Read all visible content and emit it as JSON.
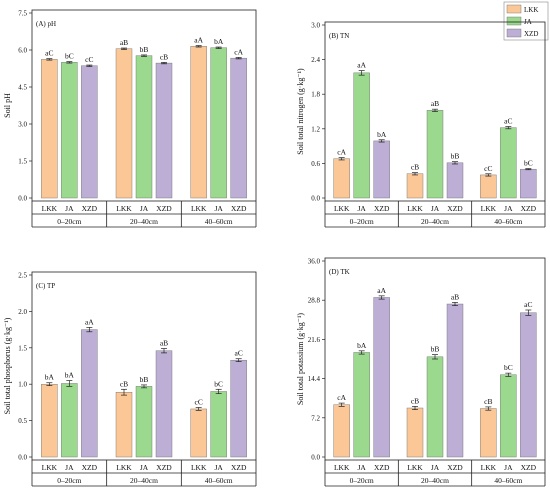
{
  "legend": [
    {
      "label": "LKK",
      "color": "#fbc796"
    },
    {
      "label": "JA",
      "color": "#9ad98e"
    },
    {
      "label": "XZD",
      "color": "#bdaed6"
    }
  ],
  "chart_data": [
    {
      "type": "bar",
      "title": "(A) pH",
      "ylabel": "Soil pH",
      "ylim": [
        0,
        7.5
      ],
      "yticks": [
        "0.0",
        "1.5",
        "3.0",
        "4.5",
        "6.0",
        "7.5"
      ],
      "groups": [
        "0–20cm",
        "20–40cm",
        "40–60cm"
      ],
      "categories": [
        "LKK",
        "JA",
        "XZD"
      ],
      "series": [
        {
          "name": "LKK",
          "values": [
            5.62,
            6.05,
            6.15
          ],
          "errors": [
            0.03,
            0.03,
            0.03
          ],
          "labels": [
            "aC",
            "aB",
            "aA"
          ]
        },
        {
          "name": "JA",
          "values": [
            5.5,
            5.77,
            6.09
          ],
          "errors": [
            0.03,
            0.03,
            0.03
          ],
          "labels": [
            "bC",
            "bB",
            "bA"
          ]
        },
        {
          "name": "XZD",
          "values": [
            5.36,
            5.47,
            5.67
          ],
          "errors": [
            0.03,
            0.03,
            0.03
          ],
          "labels": [
            "cC",
            "cB",
            "cA"
          ]
        }
      ]
    },
    {
      "type": "bar",
      "title": "(B) TN",
      "ylabel": "Soil total nitrogen (g·kg⁻¹)",
      "ylim": [
        0,
        3.0
      ],
      "yticks": [
        "0.0",
        "0.6",
        "1.2",
        "1.8",
        "2.4",
        "3.0"
      ],
      "groups": [
        "0–20cm",
        "20–40cm",
        "40–60cm"
      ],
      "categories": [
        "LKK",
        "JA",
        "XZD"
      ],
      "series": [
        {
          "name": "LKK",
          "values": [
            0.68,
            0.42,
            0.4
          ],
          "errors": [
            0.02,
            0.02,
            0.02
          ],
          "labels": [
            "cA",
            "cB",
            "cC"
          ]
        },
        {
          "name": "JA",
          "values": [
            2.17,
            1.52,
            1.22
          ],
          "errors": [
            0.04,
            0.02,
            0.02
          ],
          "labels": [
            "aA",
            "aB",
            "aC"
          ]
        },
        {
          "name": "XZD",
          "values": [
            0.99,
            0.61,
            0.5
          ],
          "errors": [
            0.02,
            0.02,
            0.01
          ],
          "labels": [
            "bA",
            "bB",
            "bC"
          ]
        }
      ]
    },
    {
      "type": "bar",
      "title": "(C) TP",
      "ylabel": "Soil total phosphorus (g·kg⁻¹)",
      "ylim": [
        0,
        2.5
      ],
      "yticks": [
        "0.0",
        "0.5",
        "1.0",
        "1.5",
        "2.0",
        "2.5"
      ],
      "groups": [
        "0–20cm",
        "20–40cm",
        "40–60cm"
      ],
      "categories": [
        "LKK",
        "JA",
        "XZD"
      ],
      "series": [
        {
          "name": "LKK",
          "values": [
            1.0,
            0.89,
            0.66
          ],
          "errors": [
            0.02,
            0.04,
            0.02
          ],
          "labels": [
            "bA",
            "cB",
            "cC"
          ]
        },
        {
          "name": "JA",
          "values": [
            1.01,
            0.97,
            0.9
          ],
          "errors": [
            0.04,
            0.02,
            0.03
          ],
          "labels": [
            "bA",
            "bB",
            "bC"
          ]
        },
        {
          "name": "XZD",
          "values": [
            1.75,
            1.46,
            1.33
          ],
          "errors": [
            0.03,
            0.03,
            0.02
          ],
          "labels": [
            "aA",
            "aB",
            "aC"
          ]
        }
      ]
    },
    {
      "type": "bar",
      "title": "(D) TK",
      "ylabel": "Soil total potassium (g·kg⁻¹)",
      "ylim": [
        0,
        36.0
      ],
      "yticks": [
        "0.0",
        "7.2",
        "14.4",
        "21.6",
        "28.8",
        "36.0"
      ],
      "groups": [
        "0–20cm",
        "20–40cm",
        "40–60cm"
      ],
      "categories": [
        "LKK",
        "JA",
        "XZD"
      ],
      "series": [
        {
          "name": "LKK",
          "values": [
            9.6,
            9.0,
            8.9
          ],
          "errors": [
            0.3,
            0.3,
            0.3
          ],
          "labels": [
            "cA",
            "cB",
            "cB"
          ]
        },
        {
          "name": "JA",
          "values": [
            19.2,
            18.4,
            15.1
          ],
          "errors": [
            0.3,
            0.4,
            0.3
          ],
          "labels": [
            "bA",
            "bB",
            "bC"
          ]
        },
        {
          "name": "XZD",
          "values": [
            29.3,
            28.1,
            26.5
          ],
          "errors": [
            0.3,
            0.3,
            0.5
          ],
          "labels": [
            "aA",
            "aB",
            "aC"
          ]
        }
      ]
    }
  ]
}
